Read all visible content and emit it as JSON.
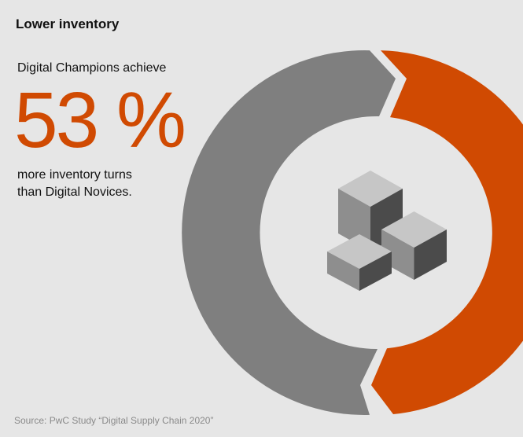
{
  "title": "Lower inventory",
  "intro": "Digital Champions achieve",
  "stat": "53 %",
  "description": [
    "more inventory turns",
    "than Digital Novices."
  ],
  "source": "Source: PwC Study “Digital Supply Chain 2020”"
}
